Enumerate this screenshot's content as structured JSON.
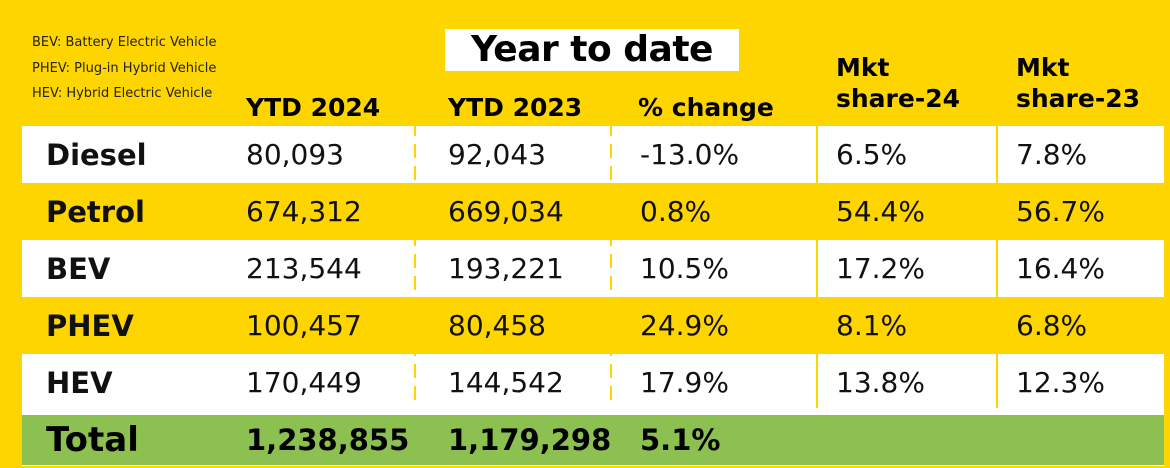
{
  "legend": [
    "BEV: Battery Electric Vehicle",
    "PHEV: Plug-in Hybrid Vehicle",
    "HEV: Hybrid Electric Vehicle"
  ],
  "title": "Year to date",
  "columns": {
    "ytd2024": "YTD 2024",
    "ytd2023": "YTD 2023",
    "change": "% change",
    "share24_l1": "Mkt",
    "share24_l2": "share-24",
    "share23_l1": "Mkt",
    "share23_l2": "share-23"
  },
  "colors": {
    "accent_yellow": "#FFD500",
    "total_green": "#8CC051"
  },
  "chart_data": {
    "type": "table",
    "title": "Year to date",
    "headers": [
      "",
      "YTD 2024",
      "YTD 2023",
      "% change",
      "Mkt share-24",
      "Mkt share-23"
    ],
    "rows": [
      {
        "label": "Diesel",
        "ytd2024": "80,093",
        "ytd2023": "92,043",
        "change": "-13.0%",
        "share24": "6.5%",
        "share23": "7.8%"
      },
      {
        "label": "Petrol",
        "ytd2024": "674,312",
        "ytd2023": "669,034",
        "change": "0.8%",
        "share24": "54.4%",
        "share23": "56.7%"
      },
      {
        "label": "BEV",
        "ytd2024": "213,544",
        "ytd2023": "193,221",
        "change": "10.5%",
        "share24": "17.2%",
        "share23": "16.4%"
      },
      {
        "label": "PHEV",
        "ytd2024": "100,457",
        "ytd2023": "80,458",
        "change": "24.9%",
        "share24": "8.1%",
        "share23": "6.8%"
      },
      {
        "label": "HEV",
        "ytd2024": "170,449",
        "ytd2023": "144,542",
        "change": "17.9%",
        "share24": "13.8%",
        "share23": "12.3%"
      }
    ],
    "total": {
      "label": "Total",
      "ytd2024": "1,238,855",
      "ytd2023": "1,179,298",
      "change": "5.1%",
      "share24": "",
      "share23": ""
    }
  }
}
